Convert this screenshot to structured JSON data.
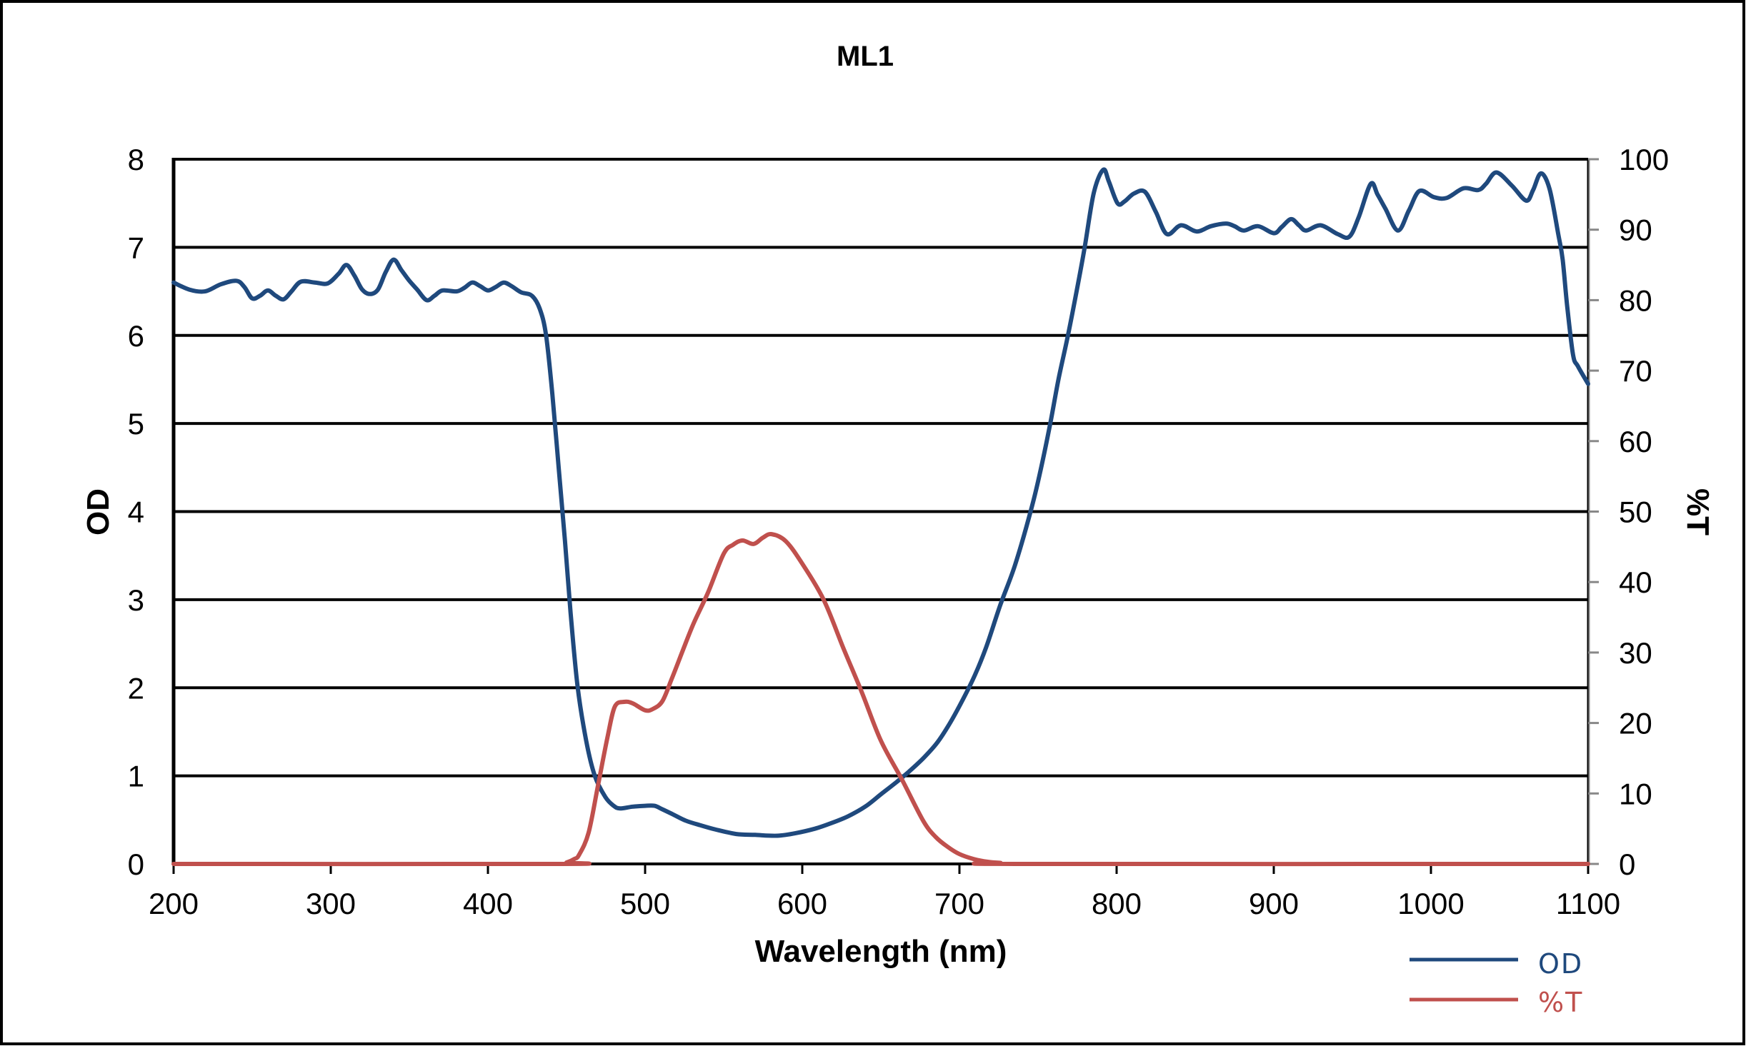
{
  "chart_data": {
    "type": "line",
    "title": "ML1",
    "xlabel": "Wavelength (nm)",
    "ylabel": "OD",
    "y2label": "%T",
    "xlim": [
      200,
      1100
    ],
    "ylim": [
      0,
      8
    ],
    "y2lim": [
      0,
      100
    ],
    "x_ticks": [
      "200",
      "300",
      "400",
      "500",
      "600",
      "700",
      "800",
      "900",
      "1000",
      "1100"
    ],
    "y_ticks": [
      "0",
      "1",
      "2",
      "3",
      "4",
      "5",
      "6",
      "7",
      "8"
    ],
    "y2_ticks": [
      "0",
      "10",
      "20",
      "30",
      "40",
      "50",
      "60",
      "70",
      "80",
      "90",
      "100"
    ],
    "grid": true,
    "legend_position": "bottom-right",
    "series": [
      {
        "name": "OD",
        "axis": "left",
        "color": "#1F497D",
        "x": [
          200,
          210,
          220,
          230,
          240,
          245,
          250,
          255,
          260,
          265,
          270,
          275,
          281,
          290,
          298,
          305,
          310,
          315,
          320,
          325,
          330,
          335,
          340,
          345,
          350,
          355,
          361,
          366,
          371,
          380,
          385,
          390,
          395,
          400,
          405,
          410,
          415,
          421,
          428,
          433,
          437,
          441,
          445,
          449,
          452.6,
          457,
          462.5,
          468,
          474.7,
          480,
          484,
          492,
          500,
          506,
          511,
          518,
          526,
          535,
          545,
          558,
          570,
          584,
          596,
          608,
          618,
          629,
          640,
          650,
          660,
          668,
          677,
          686,
          694,
          702,
          710,
          717,
          726,
          735.5,
          746,
          752,
          758,
          763,
          768.7,
          774,
          779.6,
          785.5,
          791.5,
          795,
          800.6,
          805,
          811,
          818,
          825,
          832,
          841,
          851,
          860,
          869.5,
          875,
          881,
          890,
          900,
          905,
          911,
          916,
          920.6,
          929.8,
          940.7,
          948,
          954,
          961.7,
          966,
          971,
          979,
          986,
          992.7,
          1001.9,
          1010,
          1020.7,
          1030,
          1035,
          1041.7,
          1051.5,
          1060.6,
          1065,
          1070,
          1075.5,
          1081,
          1083.8,
          1086.7,
          1090.4,
          1093.5,
          1100
        ],
        "y": [
          6.6,
          6.52,
          6.5,
          6.58,
          6.62,
          6.55,
          6.42,
          6.45,
          6.51,
          6.45,
          6.41,
          6.5,
          6.61,
          6.6,
          6.59,
          6.7,
          6.8,
          6.68,
          6.52,
          6.47,
          6.52,
          6.72,
          6.86,
          6.74,
          6.62,
          6.52,
          6.4,
          6.45,
          6.51,
          6.5,
          6.54,
          6.6,
          6.56,
          6.51,
          6.55,
          6.6,
          6.56,
          6.49,
          6.45,
          6.3,
          6.0,
          5.33,
          4.5,
          3.67,
          2.85,
          2.02,
          1.4,
          1.0,
          0.76,
          0.66,
          0.63,
          0.65,
          0.66,
          0.66,
          0.62,
          0.56,
          0.49,
          0.44,
          0.39,
          0.34,
          0.33,
          0.32,
          0.35,
          0.4,
          0.46,
          0.54,
          0.65,
          0.79,
          0.93,
          1.05,
          1.2,
          1.38,
          1.6,
          1.86,
          2.15,
          2.46,
          2.94,
          3.4,
          4.05,
          4.5,
          5.02,
          5.5,
          5.97,
          6.45,
          6.99,
          7.62,
          7.88,
          7.75,
          7.5,
          7.52,
          7.61,
          7.63,
          7.4,
          7.15,
          7.25,
          7.18,
          7.24,
          7.27,
          7.24,
          7.19,
          7.24,
          7.16,
          7.23,
          7.32,
          7.25,
          7.19,
          7.25,
          7.15,
          7.12,
          7.34,
          7.72,
          7.6,
          7.44,
          7.19,
          7.42,
          7.64,
          7.57,
          7.56,
          7.67,
          7.65,
          7.72,
          7.85,
          7.7,
          7.53,
          7.65,
          7.84,
          7.66,
          7.15,
          6.86,
          6.33,
          5.78,
          5.65,
          5.45
        ]
      },
      {
        "name": "%T",
        "axis": "right",
        "color": "#C0504D",
        "x": [
          200,
          445,
          450,
          455,
          458,
          464,
          470,
          476,
          480.7,
          486.6,
          492,
          500,
          505,
          511,
          517,
          524,
          531,
          540,
          550,
          556,
          562,
          569,
          575,
          580.5,
          589.5,
          600,
          613.6,
          626,
          638,
          650,
          663.6,
          677,
          685,
          692.7,
          700,
          709,
          718,
          726,
          740,
          1100
        ],
        "y": [
          0,
          0,
          0.2,
          0.7,
          1.3,
          4.4,
          11.1,
          17.9,
          22.3,
          23.0,
          22.8,
          21.8,
          22.0,
          23.1,
          26.3,
          30.3,
          34.2,
          38.5,
          44.0,
          45.3,
          45.9,
          45.4,
          46.3,
          46.8,
          45.8,
          42.6,
          37.5,
          30.7,
          24.3,
          17.5,
          11.9,
          6.1,
          3.8,
          2.4,
          1.4,
          0.7,
          0.3,
          0.15,
          0,
          0
        ]
      }
    ]
  }
}
